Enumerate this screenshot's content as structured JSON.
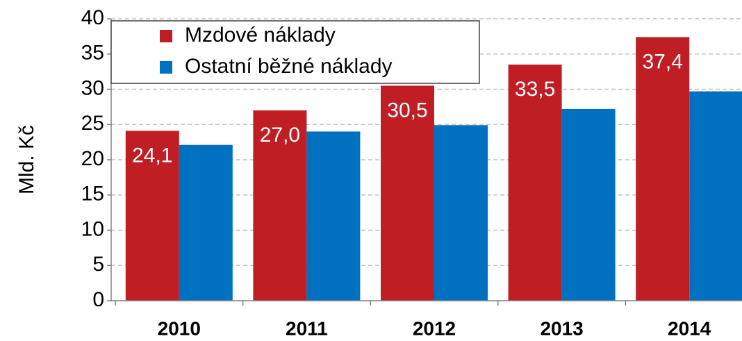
{
  "chart_data": {
    "type": "bar",
    "y_label": "Mld. Kč",
    "categories": [
      "2010",
      "2011",
      "2012",
      "2013",
      "2014"
    ],
    "series": [
      {
        "name": "Mzdové náklady",
        "color": "#be1e24",
        "values": [
          24.1,
          27.0,
          30.5,
          33.5,
          37.4
        ],
        "value_labels": [
          "24,1",
          "27,0",
          "30,5",
          "33,5",
          "37,4"
        ]
      },
      {
        "name": "Ostatní běžné náklady",
        "color": "#0070c0",
        "values": [
          22.1,
          24.0,
          24.9,
          27.2,
          29.7
        ]
      }
    ],
    "ylim": [
      0,
      40
    ],
    "yticks": [
      0,
      5,
      10,
      15,
      20,
      25,
      30,
      35,
      40
    ],
    "grid": true,
    "legend": "upper left"
  }
}
